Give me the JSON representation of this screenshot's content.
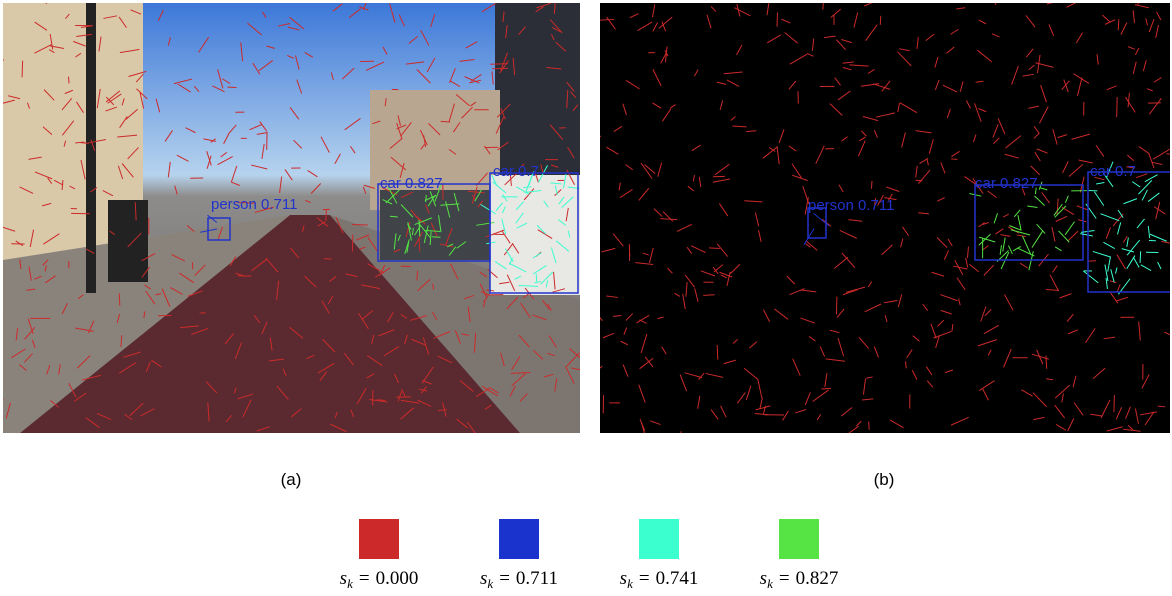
{
  "panels": [
    {
      "caption": "(a)",
      "detections": [
        {
          "label": "person 0.711",
          "color": "#2233cc"
        },
        {
          "label": "car 0.827",
          "color": "#2233cc"
        },
        {
          "label": "car 0.7",
          "color": "#2233cc"
        }
      ]
    },
    {
      "caption": "(b)",
      "detections": [
        {
          "label": "person 0.711",
          "color": "#2233cc"
        },
        {
          "label": "car 0.827",
          "color": "#2233cc"
        },
        {
          "label": "car 0.7",
          "color": "#2233cc"
        }
      ]
    }
  ],
  "legend": {
    "symbol": "s",
    "subscript": "k",
    "relation": "=",
    "items": [
      {
        "value": "0.000",
        "color": "#cc2a2a"
      },
      {
        "value": "0.711",
        "color": "#1a33cc"
      },
      {
        "value": "0.741",
        "color": "#3cffd0"
      },
      {
        "value": "0.827",
        "color": "#55e444"
      }
    ]
  }
}
